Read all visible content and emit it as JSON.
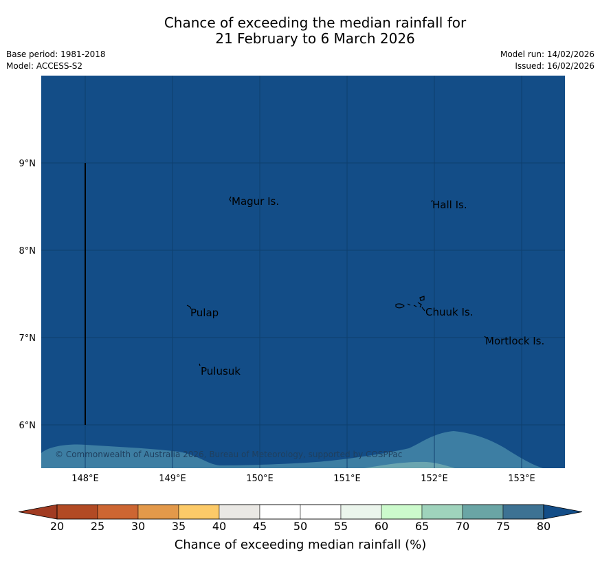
{
  "header": {
    "title_line1": "Chance of exceeding the median rainfall for",
    "title_line2": "21 February to 6 March 2026",
    "base_period": "Base period: 1981-2018",
    "model": "Model: ACCESS-S2",
    "model_run": "Model run: 14/02/2026",
    "issued": "Issued: 16/02/2026"
  },
  "map": {
    "background_color": "#134d87",
    "lower_band_color": "#3d7ea3",
    "lower_band_light_color": "#6aa5b0",
    "lat_labels": [
      "9°N",
      "8°N",
      "7°N",
      "6°N"
    ],
    "lon_labels": [
      "148°E",
      "149°E",
      "150°E",
      "151°E",
      "152°E",
      "153°E"
    ],
    "places": {
      "magur": "Magur Is.",
      "hall": "Hall Is.",
      "pulap": "Pulap",
      "chuuk": "Chuuk Is.",
      "mortlock": "Mortlock Is.",
      "pulusuk": "Pulusuk"
    },
    "credit": "© Commonwealth of Australia 2026, Bureau of Meteorology, supported by COSPPac"
  },
  "colorbar": {
    "title": "Chance of exceeding median rainfall (%)",
    "ticks": [
      "20",
      "25",
      "30",
      "35",
      "40",
      "45",
      "50",
      "55",
      "60",
      "65",
      "70",
      "75",
      "80"
    ],
    "colors": [
      "#b24a24",
      "#cd6632",
      "#e3994a",
      "#fcca68",
      "#eae8e4",
      "#ffffff",
      "#ffffff",
      "#ebf5ec",
      "#ccfacc",
      "#9fd3bc",
      "#6aa5a5",
      "#3d7293"
    ],
    "under_color": "#a13b22",
    "over_color": "#134d87"
  }
}
